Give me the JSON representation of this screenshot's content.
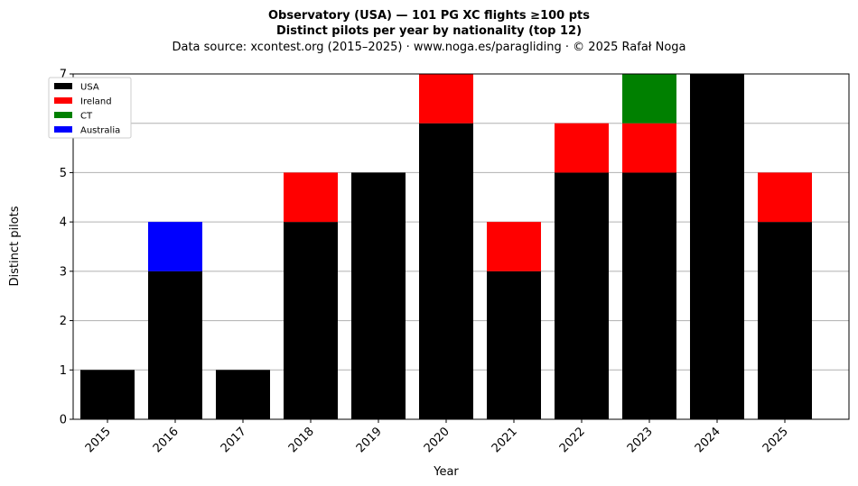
{
  "chart_data": {
    "type": "bar",
    "stacked": true,
    "title": "Observatory (USA)  —  101 PG XC flights ≥100 pts",
    "subtitle": "Distinct pilots per year by nationality (top 12)",
    "source": "Data source: xcontest.org (2015–2025)  ·  www.noga.es/paragliding  ·  © 2025 Rafał Noga",
    "xlabel": "Year",
    "ylabel": "Distinct pilots",
    "ylim": [
      0,
      7
    ],
    "yticks": [
      "0",
      "1",
      "2",
      "3",
      "4",
      "5",
      "6",
      "7"
    ],
    "grid": "y",
    "legend_position": "top-left",
    "categories": [
      "2015",
      "2016",
      "2017",
      "2018",
      "2019",
      "2020",
      "2021",
      "2022",
      "2023",
      "2024",
      "2025"
    ],
    "series": [
      {
        "name": "USA",
        "color": "#000000",
        "values": [
          1,
          3,
          1,
          4,
          5,
          6,
          3,
          5,
          5,
          7,
          4
        ]
      },
      {
        "name": "Ireland",
        "color": "#ff0000",
        "values": [
          0,
          0,
          0,
          1,
          0,
          1,
          1,
          1,
          1,
          0,
          1
        ]
      },
      {
        "name": "CT",
        "color": "#008000",
        "values": [
          0,
          0,
          0,
          0,
          0,
          0,
          0,
          0,
          1,
          0,
          0
        ]
      },
      {
        "name": "Australia",
        "color": "#0000ff",
        "values": [
          0,
          1,
          0,
          0,
          0,
          0,
          0,
          0,
          0,
          0,
          0
        ]
      }
    ]
  }
}
